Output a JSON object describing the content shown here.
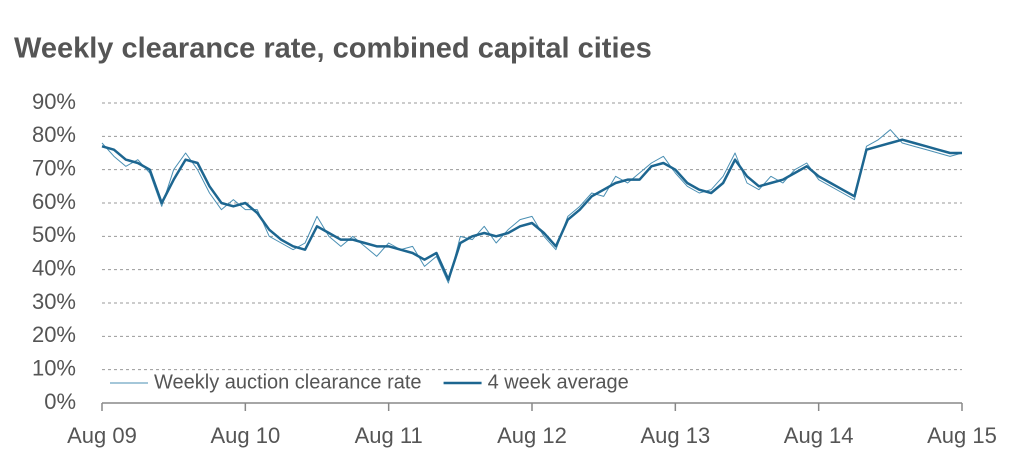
{
  "chart_data": {
    "type": "line",
    "title": "Weekly clearance rate, combined capital cities",
    "x": [
      "2009-08",
      "2009-09",
      "2009-10",
      "2009-11",
      "2009-12",
      "2010-01",
      "2010-02",
      "2010-03",
      "2010-04",
      "2010-05",
      "2010-06",
      "2010-07",
      "2010-08",
      "2010-09",
      "2010-10",
      "2010-11",
      "2010-12",
      "2011-01",
      "2011-02",
      "2011-03",
      "2011-04",
      "2011-05",
      "2011-06",
      "2011-07",
      "2011-08",
      "2011-09",
      "2011-10",
      "2011-11",
      "2011-12",
      "2012-01",
      "2012-02",
      "2012-03",
      "2012-04",
      "2012-05",
      "2012-06",
      "2012-07",
      "2012-08",
      "2012-09",
      "2012-10",
      "2012-11",
      "2012-12",
      "2013-01",
      "2013-02",
      "2013-03",
      "2013-04",
      "2013-05",
      "2013-06",
      "2013-07",
      "2013-08",
      "2013-09",
      "2013-10",
      "2013-11",
      "2013-12",
      "2014-01",
      "2014-02",
      "2014-03",
      "2014-04",
      "2014-05",
      "2014-06",
      "2014-07",
      "2014-08",
      "2014-09",
      "2014-10",
      "2014-11",
      "2014-12",
      "2015-01",
      "2015-02",
      "2015-03",
      "2015-04",
      "2015-05",
      "2015-06",
      "2015-07",
      "2015-08"
    ],
    "series": [
      {
        "name": "Weekly auction clearance rate",
        "color": "#4a8fb3",
        "width": 1,
        "values": [
          78,
          74,
          71,
          73,
          69,
          59,
          70,
          75,
          70,
          63,
          58,
          61,
          58,
          58,
          50,
          48,
          46,
          48,
          56,
          50,
          47,
          50,
          47,
          44,
          48,
          46,
          47,
          41,
          44,
          36,
          50,
          49,
          53,
          48,
          52,
          55,
          56,
          50,
          46,
          56,
          59,
          63,
          62,
          68,
          66,
          69,
          72,
          74,
          69,
          65,
          63,
          64,
          68,
          75,
          66,
          64,
          68,
          66,
          70,
          72,
          67,
          65,
          63,
          61,
          77,
          79,
          82,
          78,
          77,
          76,
          75,
          74,
          75
        ]
      },
      {
        "name": "4 week average",
        "color": "#1d6690",
        "width": 2.5,
        "values": [
          77,
          76,
          73,
          72,
          70,
          60,
          67,
          73,
          72,
          65,
          60,
          59,
          60,
          57,
          52,
          49,
          47,
          46,
          53,
          51,
          49,
          49,
          48,
          47,
          47,
          46,
          45,
          43,
          45,
          37,
          48,
          50,
          51,
          50,
          51,
          53,
          54,
          51,
          47,
          55,
          58,
          62,
          64,
          66,
          67,
          67,
          71,
          72,
          70,
          66,
          64,
          63,
          66,
          73,
          68,
          65,
          66,
          67,
          69,
          71,
          68,
          66,
          64,
          62,
          76,
          77,
          78,
          79,
          78,
          77,
          76,
          75,
          75
        ]
      }
    ],
    "xlim": [
      "2009-08",
      "2015-08"
    ],
    "xticks": [
      {
        "value": "2009-08",
        "label": "Aug 09"
      },
      {
        "value": "2010-08",
        "label": "Aug 10"
      },
      {
        "value": "2011-08",
        "label": "Aug 11"
      },
      {
        "value": "2012-08",
        "label": "Aug 12"
      },
      {
        "value": "2013-08",
        "label": "Aug 13"
      },
      {
        "value": "2014-08",
        "label": "Aug 14"
      },
      {
        "value": "2015-08",
        "label": "Aug 15"
      }
    ],
    "ylim": [
      0,
      90
    ],
    "yticks": [
      {
        "value": 0,
        "label": "0%"
      },
      {
        "value": 10,
        "label": "10%"
      },
      {
        "value": 20,
        "label": "20%"
      },
      {
        "value": 30,
        "label": "30%"
      },
      {
        "value": 40,
        "label": "40%"
      },
      {
        "value": 50,
        "label": "50%"
      },
      {
        "value": 60,
        "label": "60%"
      },
      {
        "value": 70,
        "label": "70%"
      },
      {
        "value": 80,
        "label": "80%"
      },
      {
        "value": 90,
        "label": "90%"
      }
    ],
    "grid": true,
    "legend": "bottom-left"
  }
}
